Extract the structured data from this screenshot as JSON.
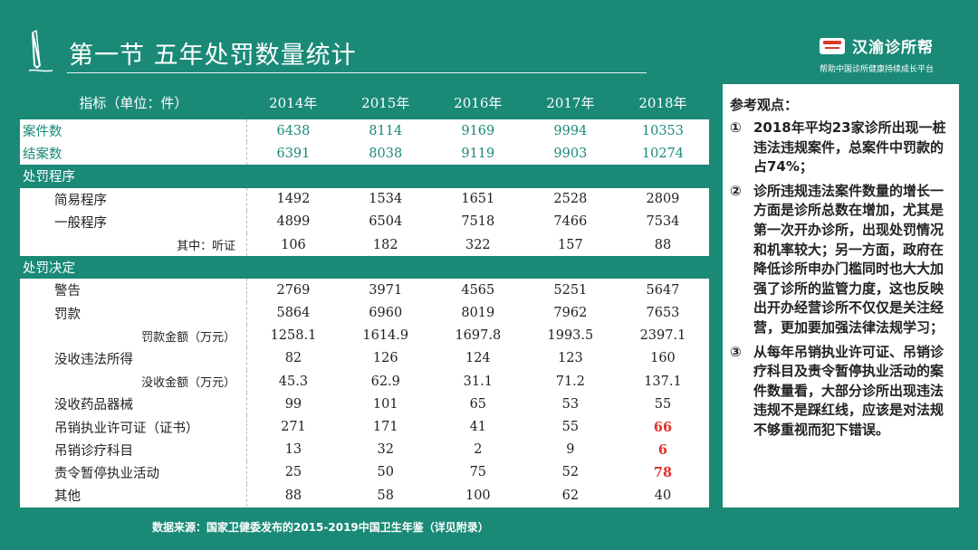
{
  "header": {
    "title": "第一节  五年处罚数量统计",
    "logo_name": "汉渝诊所帮",
    "logo_tagline": "帮助中国诊所健康持续成长平台"
  },
  "table": {
    "headers": [
      "指标（单位：件）",
      "2014年",
      "2015年",
      "2016年",
      "2017年",
      "2018年"
    ],
    "rows": [
      {
        "label": "案件数",
        "values": [
          "6438",
          "8114",
          "9169",
          "9994",
          "10353"
        ]
      },
      {
        "label": "结案数",
        "values": [
          "6391",
          "8038",
          "9119",
          "9903",
          "10274"
        ]
      },
      {
        "label": "处罚程序",
        "values": []
      },
      {
        "label": "简易程序",
        "values": [
          "1492",
          "1534",
          "1651",
          "2528",
          "2809"
        ]
      },
      {
        "label": "一般程序",
        "values": [
          "4899",
          "6504",
          "7518",
          "7466",
          "7534"
        ]
      },
      {
        "label": "其中：听证",
        "values": [
          "106",
          "182",
          "322",
          "157",
          "88"
        ]
      },
      {
        "label": "处罚决定",
        "values": []
      },
      {
        "label": "警告",
        "values": [
          "2769",
          "3971",
          "4565",
          "5251",
          "5647"
        ]
      },
      {
        "label": "罚款",
        "values": [
          "5864",
          "6960",
          "8019",
          "7962",
          "7653"
        ]
      },
      {
        "label": "罚款金额（万元）",
        "values": [
          "1258.1",
          "1614.9",
          "1697.8",
          "1993.5",
          "2397.1"
        ]
      },
      {
        "label": "没收违法所得",
        "values": [
          "82",
          "126",
          "124",
          "123",
          "160"
        ]
      },
      {
        "label": "没收金额（万元）",
        "values": [
          "45.3",
          "62.9",
          "31.1",
          "71.2",
          "137.1"
        ]
      },
      {
        "label": "没收药品器械",
        "values": [
          "99",
          "101",
          "65",
          "53",
          "55"
        ]
      },
      {
        "label": "吊销执业许可证（证书）",
        "values": [
          "271",
          "171",
          "41",
          "55",
          "66"
        ]
      },
      {
        "label": "吊销诊疗科目",
        "values": [
          "13",
          "32",
          "2",
          "9",
          "6"
        ]
      },
      {
        "label": "责令暂停执业活动",
        "values": [
          "25",
          "50",
          "75",
          "52",
          "78"
        ]
      },
      {
        "label": "其他",
        "values": [
          "88",
          "58",
          "100",
          "62",
          "40"
        ]
      }
    ]
  },
  "notes": {
    "title": "参考观点：",
    "items": [
      {
        "num": "①",
        "text": "2018年平均23家诊所出现一桩违法违规案件，总案件中罚款的占74%；"
      },
      {
        "num": "②",
        "text": "诊所违规违法案件数量的增长一方面是诊所总数在增加，尤其是第一次开办诊所，出现处罚情况和机率较大；另一方面，政府在降低诊所申办门槛同时也大大加强了诊所的监管力度，这也反映出开办经营诊所不仅仅是关注经营，更加要加强法律法规学习；"
      },
      {
        "num": "③",
        "text": "从每年吊销执业许可证、吊销诊疗科目及责令暂停执业活动的案件数量看，大部分诊所出现违法违规不是踩红线，应该是对法规不够重视而犯下错误。"
      }
    ]
  },
  "footer": {
    "source": "数据来源：国家卫健委发布的2015-2019中国卫生年鉴（详见附录）"
  },
  "colors": {
    "brand_green": "#1a8a77",
    "highlight_red": "#e0332a"
  },
  "icons": {
    "pencil": "pencil-icon",
    "logo": "clinic-logo-icon"
  }
}
